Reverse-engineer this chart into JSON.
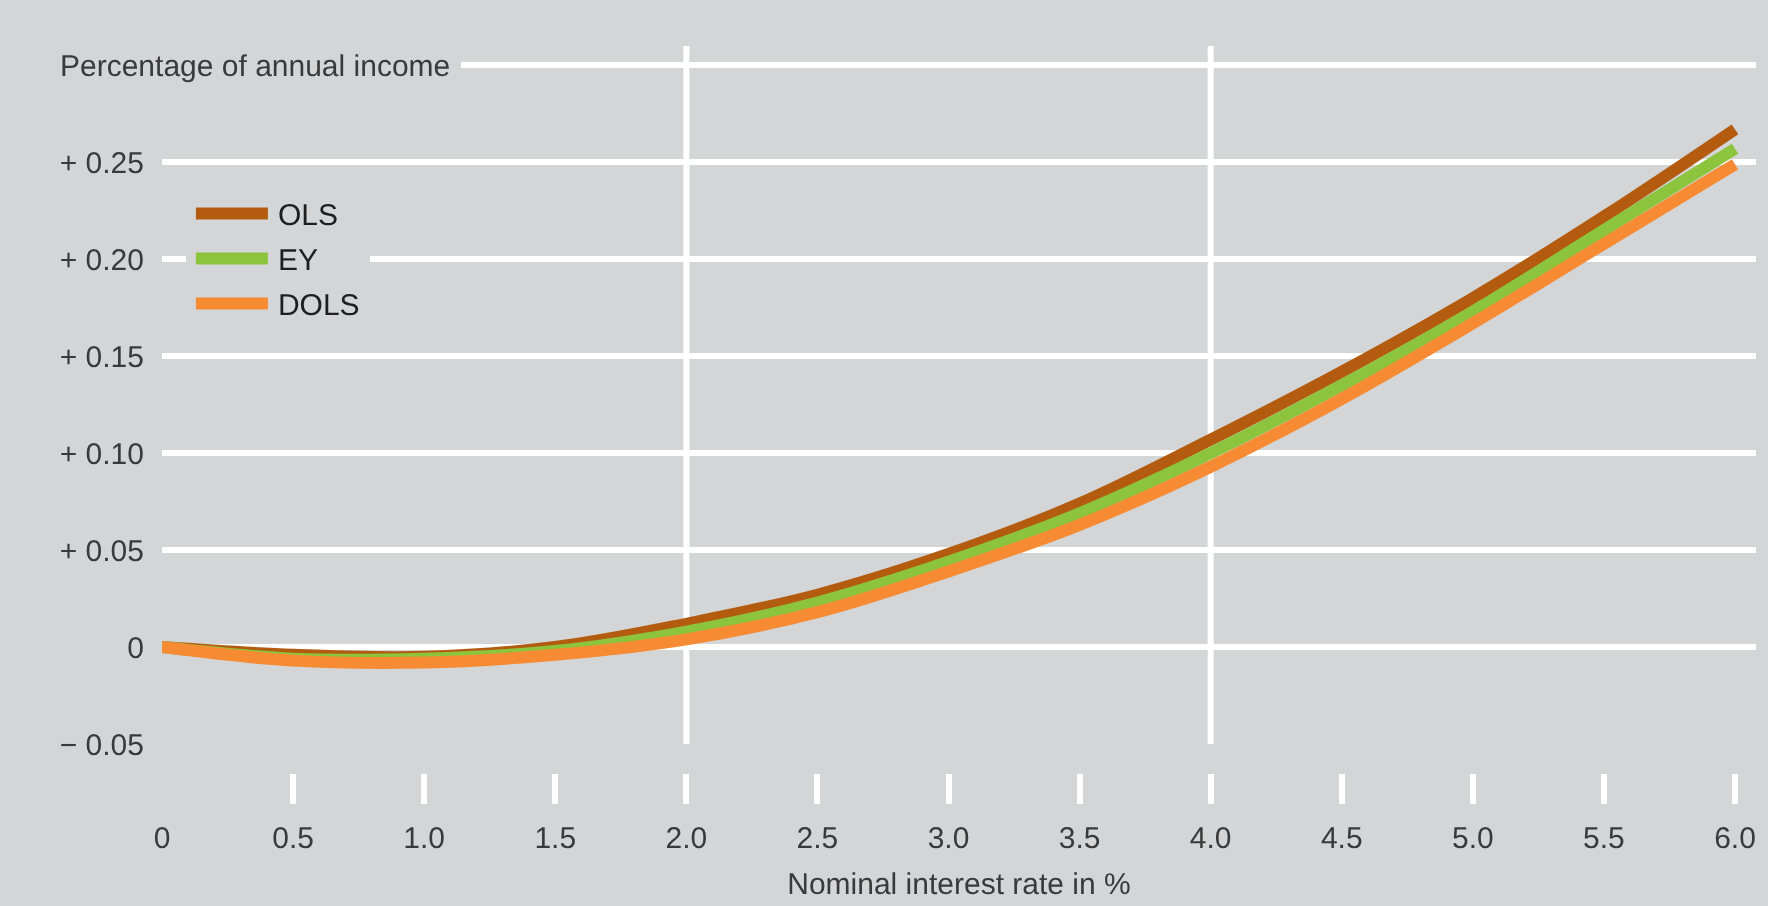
{
  "chart_data": {
    "type": "line",
    "ylabel": "Percentage of annual income",
    "xlabel": "Nominal interest rate in %",
    "x": [
      0,
      0.5,
      1.0,
      1.5,
      2.0,
      2.5,
      3.0,
      3.5,
      4.0,
      4.5,
      5.0,
      5.5,
      6.0
    ],
    "series": [
      {
        "name": "OLS",
        "color": "#b35c10",
        "values": [
          0,
          -0.004,
          -0.005,
          0.0,
          0.012,
          0.027,
          0.048,
          0.074,
          0.107,
          0.142,
          0.18,
          0.222,
          0.267
        ]
      },
      {
        "name": "EY",
        "color": "#8dc43e",
        "values": [
          0,
          -0.006,
          -0.006,
          -0.002,
          0.008,
          0.023,
          0.044,
          0.069,
          0.1,
          0.135,
          0.173,
          0.215,
          0.257
        ]
      },
      {
        "name": "DOLS",
        "color": "#f68b33",
        "values": [
          0,
          -0.007,
          -0.008,
          -0.004,
          0.004,
          0.018,
          0.039,
          0.063,
          0.093,
          0.128,
          0.167,
          0.208,
          0.249
        ]
      }
    ],
    "xlim": [
      0,
      6.08
    ],
    "xticks": [
      0,
      0.5,
      {
        "value": 1,
        "label": "1.0"
      },
      1.5,
      {
        "value": 2,
        "label": "2.0"
      },
      2.5,
      {
        "value": 3,
        "label": "3.0"
      },
      3.5,
      {
        "value": 4,
        "label": "4.0"
      },
      4.5,
      {
        "value": 5,
        "label": "5.0"
      },
      5.5,
      {
        "value": 6,
        "label": "6.0"
      }
    ],
    "ylim": [
      -0.05,
      0.31
    ],
    "yticks": [
      {
        "value": -0.05,
        "label": "− 0.05"
      },
      0,
      {
        "value": 0.05,
        "label": "+ 0.05"
      },
      {
        "value": 0.1,
        "label": "+ 0.10"
      },
      {
        "value": 0.15,
        "label": "+ 0.15"
      },
      {
        "value": 0.2,
        "label": "+ 0.20"
      },
      {
        "value": 0.25,
        "label": "+ 0.25"
      },
      {
        "value": 0.3,
        "label": null
      }
    ],
    "grid": "y",
    "legend": "top left",
    "line_style": "solid",
    "ref_lines": [
      {
        "axis": "x",
        "value": 2,
        "color": "#ffffff"
      },
      {
        "axis": "x",
        "value": 4,
        "color": "#ffffff"
      }
    ]
  }
}
